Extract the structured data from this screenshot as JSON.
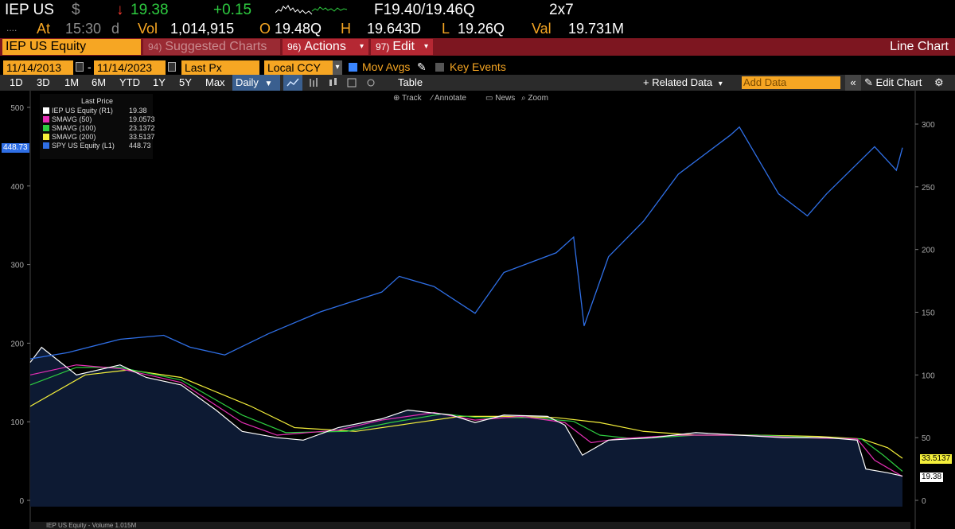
{
  "quote": {
    "ticker": "IEP US",
    "currency_symbol": "$",
    "arrow": "↓",
    "last": "19.38",
    "change": "+0.15",
    "bid_ask": "F19.40/19.46Q",
    "size": "2x7",
    "at_label": "At",
    "time": "15:30",
    "time_suffix": "d",
    "vol_label": "Vol",
    "volume": "1,014,915",
    "open_label": "O",
    "open": "19.48Q",
    "high_label": "H",
    "high": "19.643D",
    "low_label": "L",
    "low": "19.26Q",
    "val_label": "Val",
    "value": "19.731M"
  },
  "menubar": {
    "security": "IEP US Equity",
    "suggested_num": "94)",
    "suggested": "Suggested Charts",
    "actions_num": "96)",
    "actions": "Actions",
    "edit_num": "97)",
    "edit": "Edit",
    "title": "Line Chart"
  },
  "daterow": {
    "start": "11/14/2013",
    "sep": "-",
    "end": "11/14/2023",
    "field": "Last Px",
    "currency": "Local CCY",
    "mov_avgs": "Mov Avgs",
    "key_events": "Key Events"
  },
  "toolbar": {
    "periods": [
      "1D",
      "3D",
      "1M",
      "6M",
      "YTD",
      "1Y",
      "5Y",
      "Max"
    ],
    "frequency": "Daily",
    "table": "Table",
    "related": "+ Related Data",
    "add_data_placeholder": "Add Data",
    "edit_chart": "Edit Chart"
  },
  "chart_tools": {
    "track": "Track",
    "annotate": "Annotate",
    "news": "News",
    "zoom": "Zoom"
  },
  "legend": {
    "header": "Last Price",
    "items": [
      {
        "label": "IEP US Equity  (R1)",
        "value": "19.38",
        "color": "#ffffff"
      },
      {
        "label": "SMAVG (50)",
        "value": "19.0573",
        "color": "#e62fb6"
      },
      {
        "label": "SMAVG (100)",
        "value": "23.1372",
        "color": "#2ecc40"
      },
      {
        "label": "SMAVG (200)",
        "value": "33.5137",
        "color": "#f5f03b"
      },
      {
        "label": "SPY US Equity  (L1)",
        "value": "448.73",
        "color": "#2f6fe6"
      }
    ]
  },
  "badges": {
    "spy": "448.73",
    "iep_sma200": "33.5137",
    "iep_last": "19.38"
  },
  "volume_label": "IEP US Equity - Volume  1.015M",
  "colors": {
    "amber": "#f6a623",
    "menu_red": "#7d1620",
    "spy_blue": "#2f6fe6",
    "iep_fill": "#0d1a33"
  },
  "chart_data": {
    "type": "line",
    "x_range": [
      "11/14/2013",
      "11/14/2023"
    ],
    "left_axis": {
      "ticks": [
        0,
        100,
        200,
        300,
        400,
        500
      ],
      "ylim": [
        -10,
        500
      ]
    },
    "right_axis": {
      "ticks": [
        0,
        50,
        100,
        150,
        200,
        250,
        300
      ],
      "ylim": [
        -5,
        305
      ]
    },
    "series": [
      {
        "name": "SPY US Equity",
        "axis": "left",
        "color": "#2f6fe6",
        "x": [
          2013.87,
          2014.3,
          2014.9,
          2015.4,
          2015.7,
          2016.1,
          2016.6,
          2017.2,
          2017.9,
          2018.1,
          2018.5,
          2018.97,
          2019.3,
          2019.9,
          2020.1,
          2020.22,
          2020.5,
          2020.9,
          2021.3,
          2021.9,
          2022.0,
          2022.45,
          2022.78,
          2023.0,
          2023.55,
          2023.8,
          2023.87
        ],
        "y": [
          180,
          188,
          205,
          210,
          195,
          185,
          212,
          240,
          265,
          285,
          272,
          238,
          290,
          315,
          335,
          222,
          310,
          355,
          415,
          465,
          475,
          390,
          362,
          390,
          450,
          420,
          448.73
        ]
      },
      {
        "name": "IEP US Equity",
        "axis": "right",
        "color": "#ffffff",
        "x": [
          2013.87,
          2014.0,
          2014.4,
          2014.9,
          2015.2,
          2015.6,
          2016.0,
          2016.3,
          2016.7,
          2017.0,
          2017.4,
          2017.9,
          2018.2,
          2018.7,
          2018.97,
          2019.3,
          2019.8,
          2020.0,
          2020.2,
          2020.5,
          2021.0,
          2021.5,
          2022.0,
          2022.5,
          2023.0,
          2023.35,
          2023.45,
          2023.7,
          2023.87
        ],
        "y": [
          110,
          122,
          100,
          108,
          98,
          92,
          72,
          55,
          50,
          48,
          58,
          65,
          72,
          68,
          62,
          68,
          67,
          60,
          36,
          48,
          50,
          54,
          52,
          50,
          50,
          48,
          25,
          22,
          19.38
        ]
      },
      {
        "name": "SMAVG (50)",
        "axis": "right",
        "color": "#e62fb6",
        "x": [
          2013.87,
          2014.4,
          2014.9,
          2015.6,
          2016.3,
          2016.7,
          2017.4,
          2017.9,
          2018.5,
          2018.97,
          2019.5,
          2020.0,
          2020.3,
          2020.6,
          2021.3,
          2022.0,
          2022.7,
          2023.35,
          2023.55,
          2023.87
        ],
        "y": [
          100,
          108,
          105,
          94,
          62,
          52,
          56,
          64,
          70,
          64,
          67,
          62,
          46,
          49,
          52,
          52,
          50,
          49,
          32,
          19.0573
        ]
      },
      {
        "name": "SMAVG (100)",
        "axis": "right",
        "color": "#2ecc40",
        "x": [
          2013.87,
          2014.4,
          2014.9,
          2015.6,
          2016.3,
          2016.8,
          2017.5,
          2018.0,
          2018.6,
          2019.0,
          2019.6,
          2020.1,
          2020.4,
          2020.8,
          2021.5,
          2022.2,
          2022.9,
          2023.4,
          2023.65,
          2023.87
        ],
        "y": [
          92,
          106,
          106,
          96,
          68,
          54,
          55,
          62,
          69,
          66,
          66,
          63,
          52,
          49,
          52,
          52,
          50,
          49,
          36,
          23.1372
        ]
      },
      {
        "name": "SMAVG (200)",
        "axis": "right",
        "color": "#f5f03b",
        "x": [
          2013.87,
          2014.5,
          2015.0,
          2015.6,
          2016.4,
          2016.9,
          2017.6,
          2018.2,
          2018.8,
          2019.3,
          2019.9,
          2020.4,
          2020.9,
          2021.5,
          2022.2,
          2022.9,
          2023.4,
          2023.7,
          2023.87
        ],
        "y": [
          75,
          100,
          104,
          98,
          75,
          58,
          55,
          61,
          67,
          67,
          66,
          62,
          55,
          52,
          52,
          51,
          49,
          42,
          33.5137
        ]
      }
    ]
  }
}
